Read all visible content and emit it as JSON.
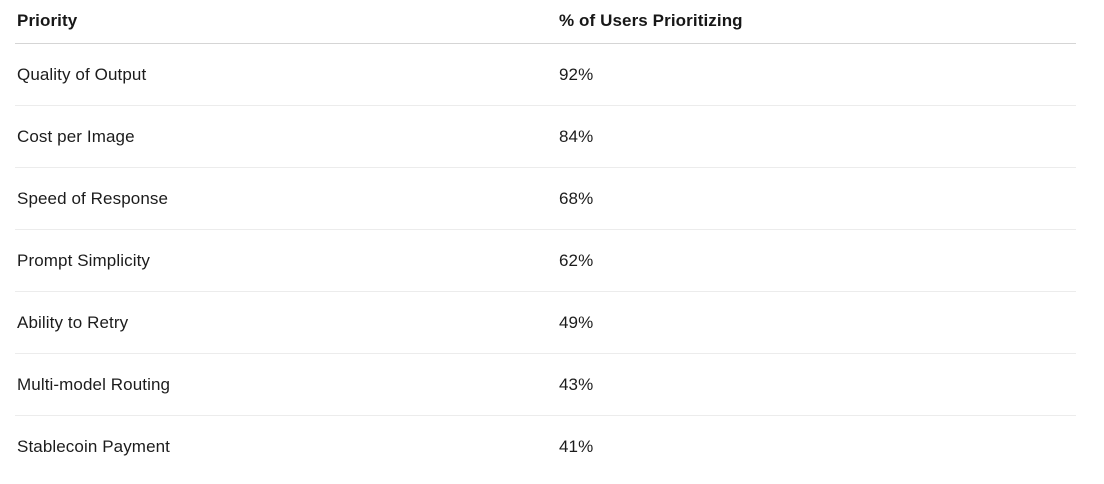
{
  "table": {
    "columns": [
      {
        "key": "priority",
        "label": "Priority"
      },
      {
        "key": "percent",
        "label": "% of Users Prioritizing"
      }
    ],
    "rows": [
      {
        "priority": "Quality of Output",
        "percent": "92%"
      },
      {
        "priority": "Cost per Image",
        "percent": "84%"
      },
      {
        "priority": "Speed of Response",
        "percent": "68%"
      },
      {
        "priority": "Prompt Simplicity",
        "percent": "62%"
      },
      {
        "priority": "Ability to Retry",
        "percent": "49%"
      },
      {
        "priority": "Multi-model Routing",
        "percent": "43%"
      },
      {
        "priority": "Stablecoin Payment",
        "percent": "41%"
      }
    ]
  },
  "chart_data": {
    "type": "table",
    "title": "",
    "columns": [
      "Priority",
      "% of Users Prioritizing"
    ],
    "categories": [
      "Quality of Output",
      "Cost per Image",
      "Speed of Response",
      "Prompt Simplicity",
      "Ability to Retry",
      "Multi-model Routing",
      "Stablecoin Payment"
    ],
    "values": [
      92,
      84,
      68,
      62,
      49,
      43,
      41
    ],
    "value_unit": "%"
  },
  "colors": {
    "background": "#ffffff",
    "text": "#1c1c1c",
    "header_text": "#171717",
    "header_border": "#d5d5d5",
    "row_border": "#ececec"
  }
}
